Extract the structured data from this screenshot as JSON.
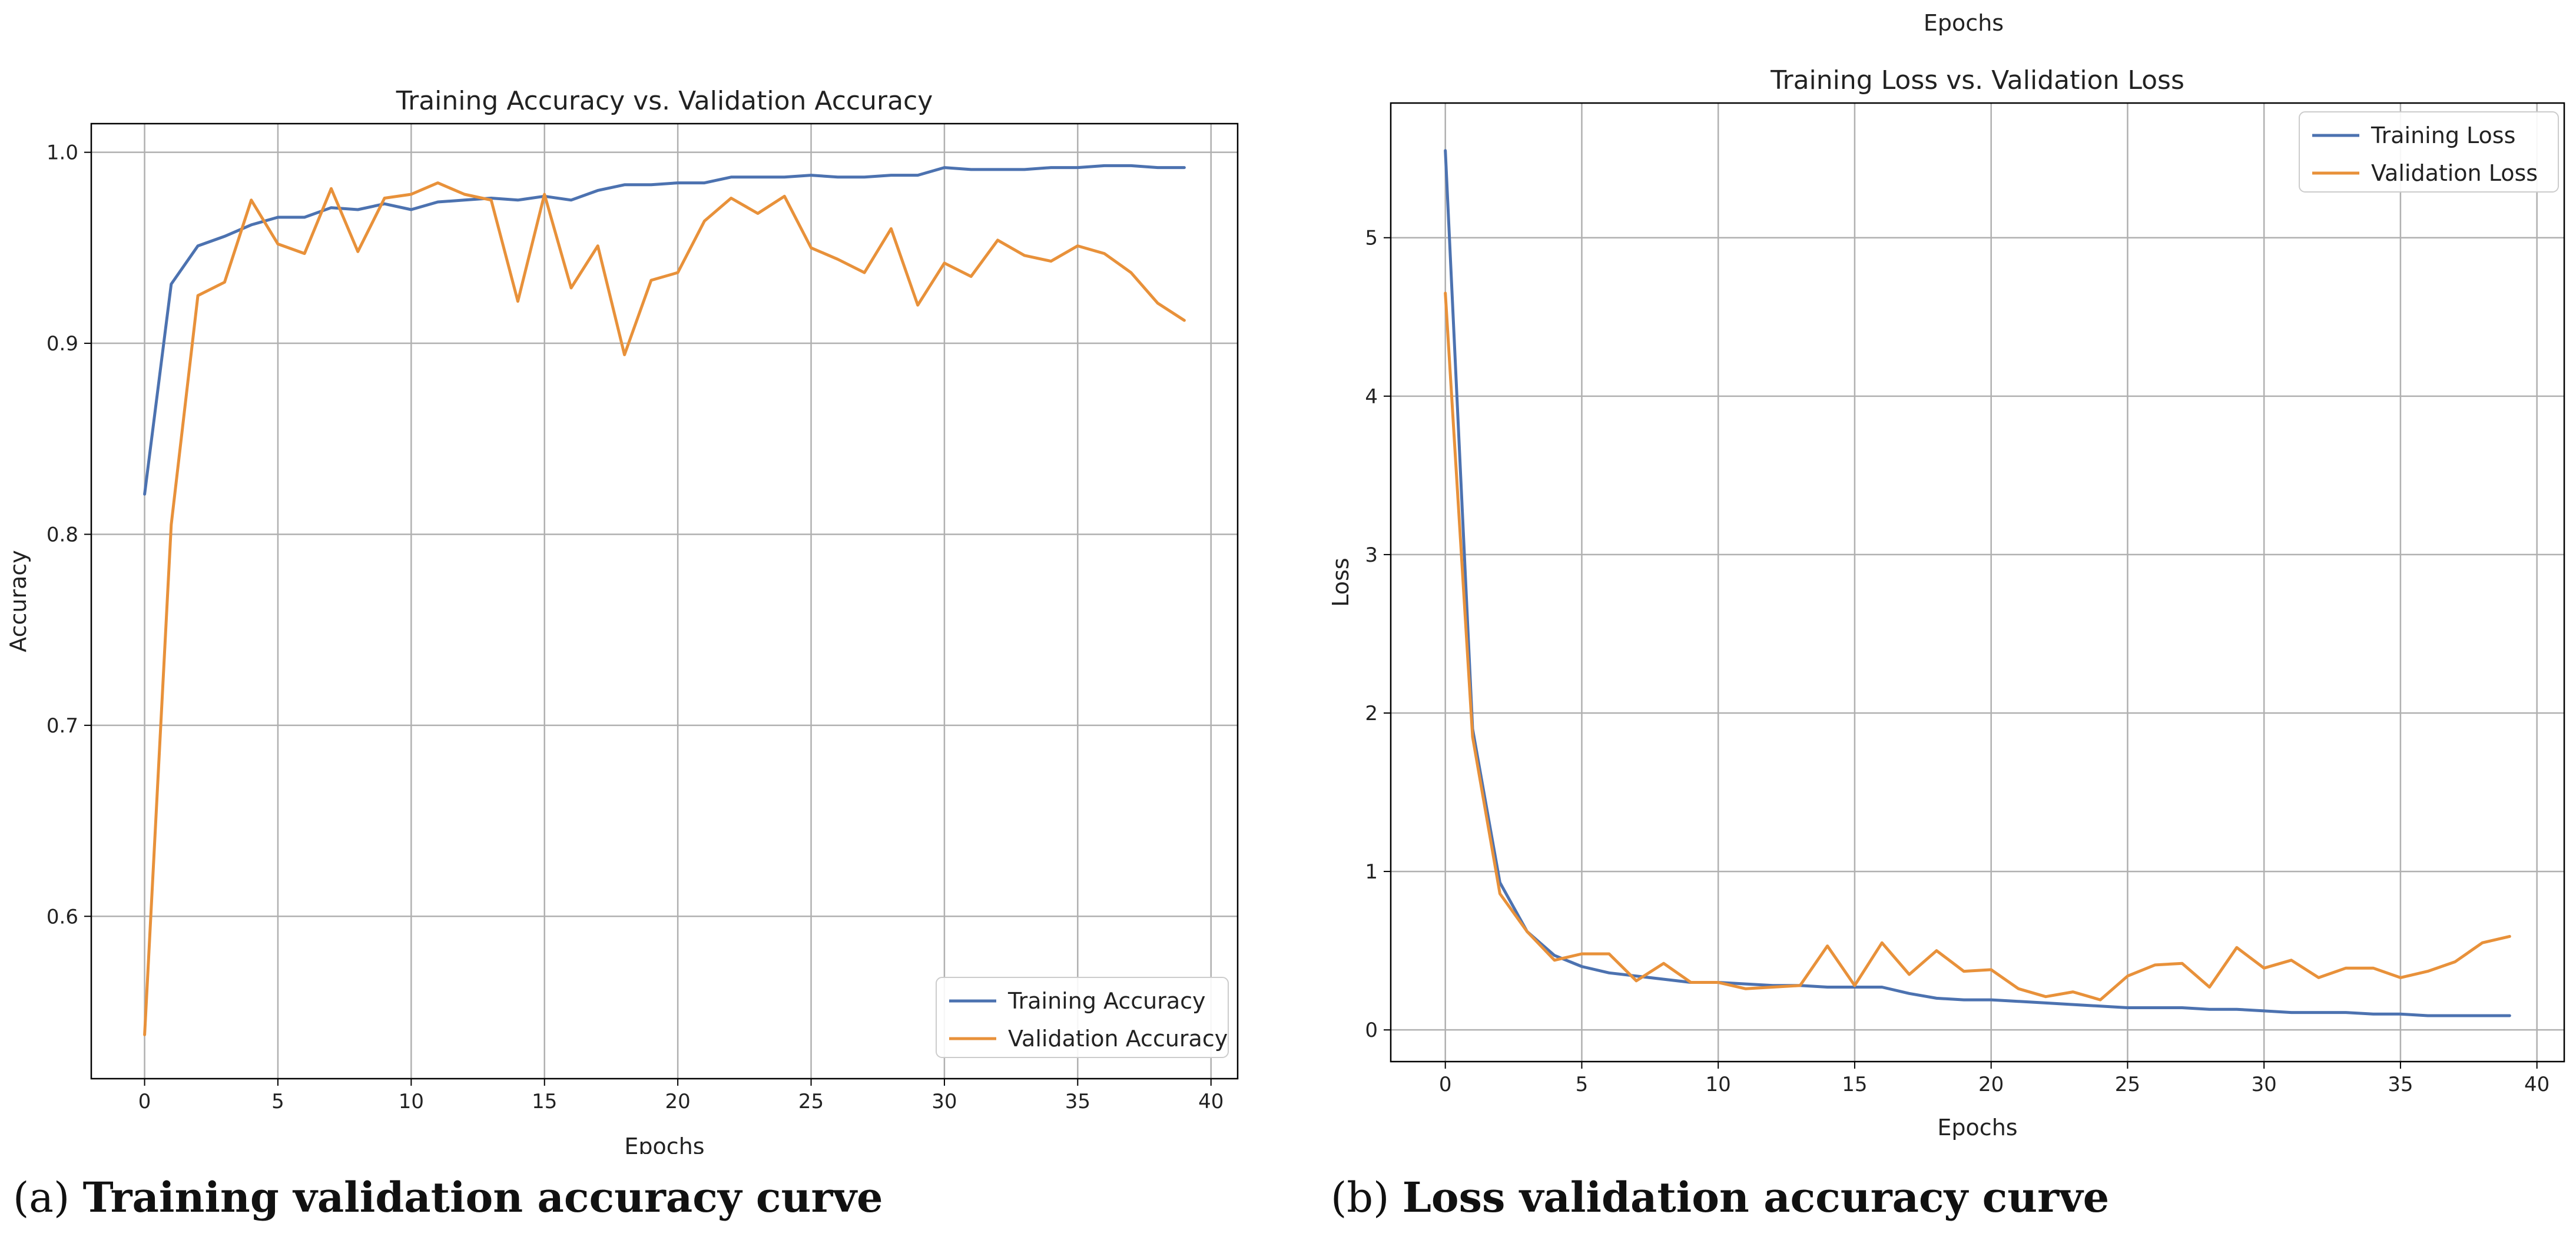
{
  "colors": {
    "training": "#4c72b0",
    "validation": "#e8913a",
    "grid": "#b0b0b0",
    "axis": "#000000"
  },
  "chart_data": [
    {
      "type": "line",
      "title": "Training Accuracy vs. Validation Accuracy",
      "xlabel": "Epochs",
      "ylabel": "Accuracy",
      "xlim": [
        -2,
        41
      ],
      "ylim": [
        0.515,
        1.015
      ],
      "xticks": [
        0,
        5,
        10,
        15,
        20,
        25,
        30,
        35,
        40
      ],
      "yticks": [
        0.6,
        0.7,
        0.8,
        0.9,
        1.0
      ],
      "ytick_labels": [
        "0.6",
        "0.7",
        "0.8",
        "0.9",
        "1.0"
      ],
      "grid": true,
      "legend_position": "lower-right",
      "x": [
        0,
        1,
        2,
        3,
        4,
        5,
        6,
        7,
        8,
        9,
        10,
        11,
        12,
        13,
        14,
        15,
        16,
        17,
        18,
        19,
        20,
        21,
        22,
        23,
        24,
        25,
        26,
        27,
        28,
        29,
        30,
        31,
        32,
        33,
        34,
        35,
        36,
        37,
        38,
        39
      ],
      "series": [
        {
          "name": "Training Accuracy",
          "color_key": "training",
          "values": [
            0.821,
            0.931,
            0.951,
            0.956,
            0.962,
            0.966,
            0.966,
            0.971,
            0.97,
            0.973,
            0.97,
            0.974,
            0.975,
            0.976,
            0.975,
            0.977,
            0.975,
            0.98,
            0.983,
            0.983,
            0.984,
            0.984,
            0.987,
            0.987,
            0.987,
            0.988,
            0.987,
            0.987,
            0.988,
            0.988,
            0.992,
            0.991,
            0.991,
            0.991,
            0.992,
            0.992,
            0.993,
            0.993,
            0.992,
            0.992
          ]
        },
        {
          "name": "Validation Accuracy",
          "color_key": "validation",
          "values": [
            0.538,
            0.805,
            0.925,
            0.932,
            0.975,
            0.952,
            0.947,
            0.981,
            0.948,
            0.976,
            0.978,
            0.984,
            0.978,
            0.975,
            0.922,
            0.978,
            0.929,
            0.951,
            0.894,
            0.933,
            0.937,
            0.964,
            0.976,
            0.968,
            0.977,
            0.95,
            0.944,
            0.937,
            0.96,
            0.92,
            0.942,
            0.935,
            0.954,
            0.946,
            0.943,
            0.951,
            0.947,
            0.937,
            0.921,
            0.912
          ]
        }
      ]
    },
    {
      "type": "line",
      "title": "Training Loss vs. Validation Loss",
      "top_label": "Epochs",
      "xlabel": "Epochs",
      "ylabel": "Loss",
      "xlim": [
        -2,
        41
      ],
      "ylim": [
        -0.2,
        5.85
      ],
      "xticks": [
        0,
        5,
        10,
        15,
        20,
        25,
        30,
        35,
        40
      ],
      "yticks": [
        0,
        1,
        2,
        3,
        4,
        5
      ],
      "ytick_labels": [
        "0",
        "1",
        "2",
        "3",
        "4",
        "5"
      ],
      "grid": true,
      "legend_position": "top-right",
      "x": [
        0,
        1,
        2,
        3,
        4,
        5,
        6,
        7,
        8,
        9,
        10,
        11,
        12,
        13,
        14,
        15,
        16,
        17,
        18,
        19,
        20,
        21,
        22,
        23,
        24,
        25,
        26,
        27,
        28,
        29,
        30,
        31,
        32,
        33,
        34,
        35,
        36,
        37,
        38,
        39
      ],
      "series": [
        {
          "name": "Training Loss",
          "color_key": "training",
          "values": [
            5.55,
            1.9,
            0.93,
            0.62,
            0.47,
            0.4,
            0.36,
            0.34,
            0.32,
            0.3,
            0.3,
            0.29,
            0.28,
            0.28,
            0.27,
            0.27,
            0.27,
            0.23,
            0.2,
            0.19,
            0.19,
            0.18,
            0.17,
            0.16,
            0.15,
            0.14,
            0.14,
            0.14,
            0.13,
            0.13,
            0.12,
            0.11,
            0.11,
            0.11,
            0.1,
            0.1,
            0.09,
            0.09,
            0.09,
            0.09
          ]
        },
        {
          "name": "Validation Loss",
          "color_key": "validation",
          "values": [
            4.65,
            1.85,
            0.86,
            0.62,
            0.44,
            0.48,
            0.48,
            0.31,
            0.42,
            0.3,
            0.3,
            0.26,
            0.27,
            0.28,
            0.53,
            0.28,
            0.55,
            0.35,
            0.5,
            0.37,
            0.38,
            0.26,
            0.21,
            0.24,
            0.19,
            0.34,
            0.41,
            0.42,
            0.27,
            0.52,
            0.39,
            0.44,
            0.33,
            0.39,
            0.39,
            0.33,
            0.37,
            0.43,
            0.55,
            0.59
          ]
        }
      ]
    }
  ],
  "captions": [
    {
      "letter": "(a)",
      "text": "Training validation accuracy curve"
    },
    {
      "letter": "(b)",
      "text": "Loss validation accuracy curve"
    }
  ]
}
